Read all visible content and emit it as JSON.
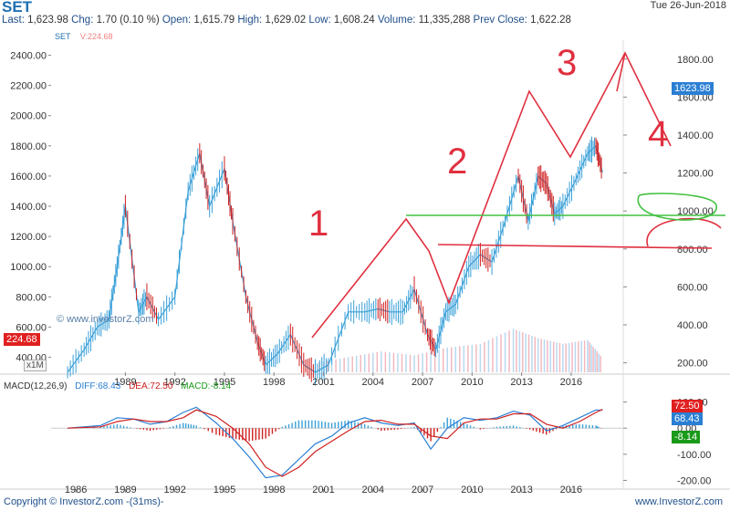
{
  "header": {
    "symbol": "SET",
    "date": "Tue 26-Jun-2018",
    "quote": {
      "last_label": "Last:",
      "last": "1,623.98",
      "chg_label": "Chg:",
      "chg": "1.70 (0.10 %)",
      "open_label": "Open:",
      "open": "1,615.79",
      "high_label": "High:",
      "high": "1,629.02",
      "low_label": "Low:",
      "low": "1,608.24",
      "volume_label": "Volume:",
      "volume": "11,335,288",
      "prevclose_label": "Prev Close:",
      "prevclose": "1,622.28"
    }
  },
  "legend": {
    "symbol": "SET",
    "volume": "V:224.68"
  },
  "watermark": "© www.investorZ.com",
  "period_button": "x1M",
  "macd_legend": {
    "name": "MACD(12,26,9)",
    "diff": "DIFF:68.43",
    "dea": "DEA:72.50",
    "macd": "MACD:-8.14"
  },
  "badges": {
    "volume_left": "224.68",
    "price_right": "1623.98",
    "dea_right": "72.50",
    "diff_right": "68.43",
    "macd_right": "-8.14"
  },
  "footer": {
    "copyright": "Copyright © InvestorZ.com -(31ms)-",
    "site": "www.InvestorZ.com"
  },
  "annotations": {
    "wave_labels": [
      "1",
      "2",
      "3",
      "4"
    ]
  },
  "colors": {
    "up": "#3aa0d8",
    "down": "#d02020",
    "diff_line": "#2a7fd4",
    "dea_line": "#d02020",
    "annotation_red": "#e03040",
    "annotation_green": "#40c040",
    "badge_red": "#e02020",
    "badge_blue": "#2a7fd4",
    "badge_green": "#1a9a1a"
  },
  "chart_data": {
    "type": "line",
    "price_axis": {
      "left_ticks": [
        "2400.00",
        "2200.00",
        "2000.00",
        "1800.00",
        "1600.00",
        "1400.00",
        "1200.00",
        "1000.00",
        "800.00",
        "600.00",
        "400.00"
      ],
      "ylim": [
        300,
        2500
      ]
    },
    "volume_axis": {
      "right_ticks": [
        "1800.00",
        "1600.00",
        "1400.00",
        "1200.00",
        "1000.00",
        "800.00",
        "600.00",
        "400.00",
        "200.00"
      ],
      "ylim": [
        150,
        1900
      ]
    },
    "macd_axis": {
      "right_ticks": [
        "100.00",
        "0.00",
        "-100.00",
        "-200.00"
      ],
      "ylim": [
        -230,
        130
      ]
    },
    "x_ticks_main": [
      "1989",
      "1992",
      "1995",
      "1998",
      "2001",
      "2004",
      "2007",
      "2010",
      "2013",
      "2016"
    ],
    "x_ticks_bottom": [
      "1986",
      "1989",
      "1992",
      "1995",
      "1998",
      "2001",
      "2004",
      "2007",
      "2010",
      "2013",
      "2016"
    ],
    "xlim": [
      1985.0,
      2019.6
    ],
    "price_series": {
      "name": "SET",
      "x": [
        1986.0,
        1987.0,
        1987.8,
        1988.5,
        1989.0,
        1989.5,
        1990.3,
        1990.8,
        1991.5,
        1992.5,
        1993.3,
        1994.0,
        1994.6,
        1995.5,
        1996.0,
        1996.8,
        1997.5,
        1998.0,
        1998.7,
        1999.5,
        2000.3,
        2001.0,
        2001.8,
        2003.0,
        2004.0,
        2004.8,
        2005.5,
        2006.3,
        2007.0,
        2007.8,
        2008.3,
        2008.9,
        2009.5,
        2010.3,
        2011.0,
        2011.7,
        2012.5,
        2013.3,
        2013.9,
        2014.5,
        2015.0,
        2015.5,
        2016.0,
        2016.8,
        2017.5,
        2018.0,
        2018.4
      ],
      "y": [
        300,
        450,
        600,
        650,
        1000,
        1400,
        700,
        800,
        650,
        800,
        1500,
        1750,
        1400,
        1650,
        1300,
        800,
        500,
        350,
        420,
        550,
        350,
        300,
        350,
        700,
        700,
        720,
        700,
        700,
        850,
        550,
        450,
        700,
        750,
        1000,
        1080,
        1030,
        1300,
        1600,
        1300,
        1600,
        1550,
        1350,
        1400,
        1580,
        1750,
        1800,
        1624
      ]
    },
    "volume_series": {
      "name": "Volume",
      "x": [
        2001.0,
        2003.0,
        2005.0,
        2007.0,
        2009.0,
        2011.0,
        2013.0,
        2014.5,
        2016.0,
        2017.5,
        2018.4
      ],
      "y": [
        200,
        230,
        260,
        240,
        280,
        300,
        380,
        330,
        300,
        320,
        225
      ]
    },
    "macd": {
      "x": [
        1986,
        1988,
        1989,
        1990,
        1991,
        1992,
        1993,
        1993.8,
        1995,
        1996,
        1997,
        1998,
        1999,
        2000,
        2001,
        2002,
        2003,
        2004,
        2005,
        2006,
        2007,
        2008,
        2009,
        2010,
        2011,
        2012,
        2013,
        2014,
        2015,
        2016,
        2017,
        2018,
        2018.4
      ],
      "diff": [
        0,
        10,
        40,
        35,
        15,
        25,
        60,
        80,
        20,
        -40,
        -110,
        -190,
        -180,
        -120,
        -60,
        -30,
        20,
        40,
        20,
        10,
        20,
        -80,
        0,
        40,
        30,
        40,
        65,
        50,
        -10,
        10,
        40,
        70,
        68
      ],
      "dea": [
        0,
        5,
        25,
        35,
        25,
        25,
        40,
        70,
        45,
        0,
        -60,
        -150,
        -185,
        -150,
        -90,
        -50,
        -10,
        25,
        30,
        15,
        15,
        -30,
        -40,
        20,
        35,
        35,
        55,
        55,
        15,
        0,
        25,
        60,
        72
      ]
    }
  }
}
